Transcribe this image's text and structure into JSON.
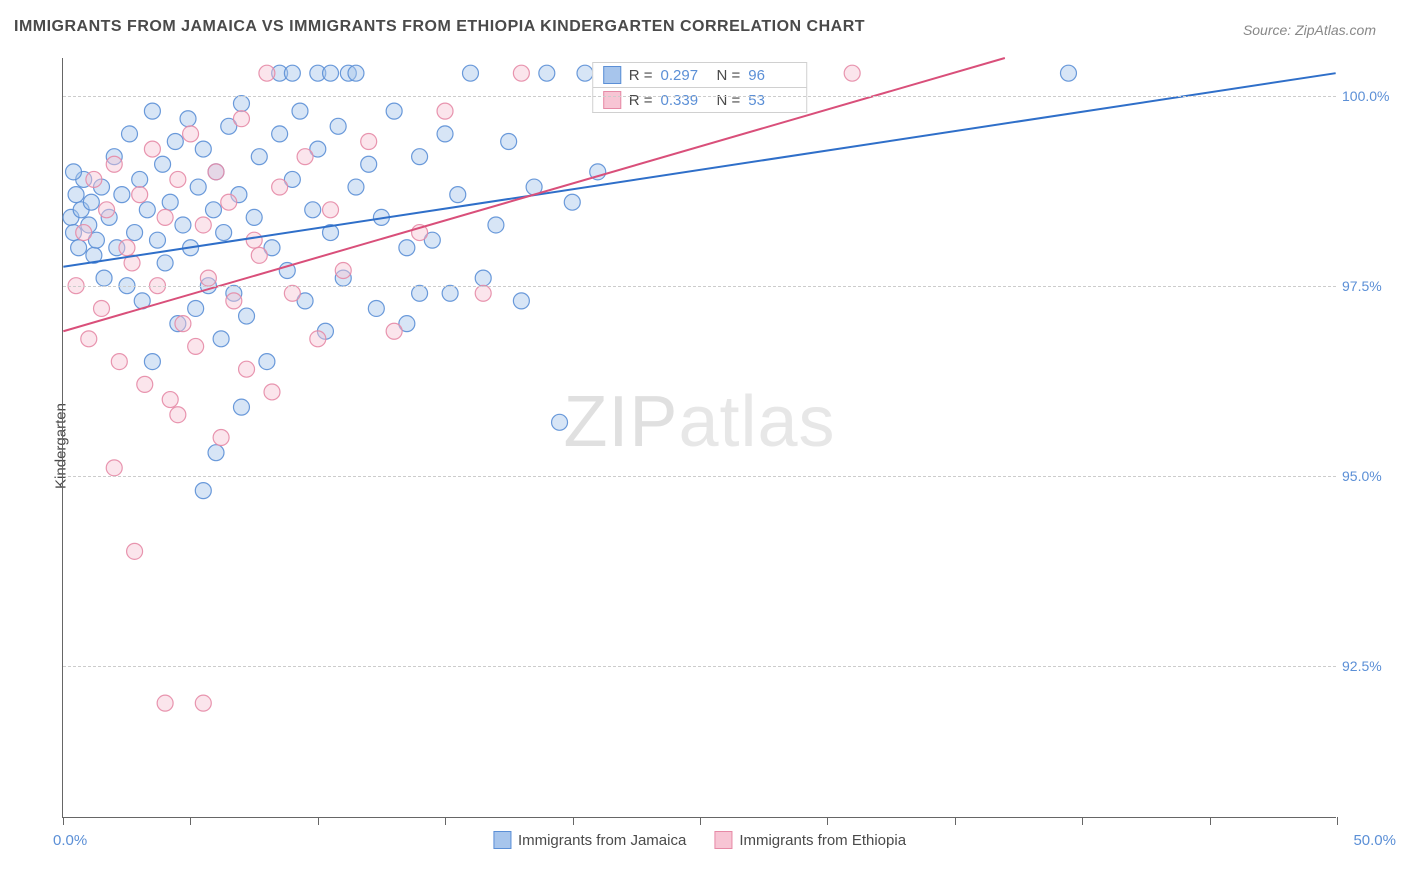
{
  "title": "IMMIGRANTS FROM JAMAICA VS IMMIGRANTS FROM ETHIOPIA KINDERGARTEN CORRELATION CHART",
  "source": "Source: ZipAtlas.com",
  "y_axis_label": "Kindergarten",
  "watermark_bold": "ZIP",
  "watermark_thin": "atlas",
  "chart": {
    "type": "scatter",
    "xlim": [
      0,
      50
    ],
    "ylim": [
      90.5,
      100.5
    ],
    "x_tick_positions": [
      0,
      5,
      10,
      15,
      20,
      25,
      30,
      35,
      40,
      45,
      50
    ],
    "x_tick_labels": {
      "min": "0.0%",
      "max": "50.0%"
    },
    "y_ticks": [
      92.5,
      95.0,
      97.5,
      100.0
    ],
    "y_tick_labels": [
      "92.5%",
      "95.0%",
      "97.5%",
      "100.0%"
    ],
    "grid_color": "#cccccc",
    "background_color": "#ffffff",
    "axis_color": "#666666",
    "tick_label_color": "#5b8fd6",
    "marker_radius": 8,
    "marker_opacity": 0.45,
    "marker_stroke_opacity": 0.9,
    "line_width": 2,
    "series": [
      {
        "name": "Immigrants from Jamaica",
        "color_fill": "#a7c5ec",
        "color_stroke": "#5b8fd6",
        "line_color": "#2f6fc9",
        "R": "0.297",
        "N": "96",
        "regression": {
          "x1": 0,
          "y1": 97.75,
          "x2": 50,
          "y2": 100.3
        },
        "points": [
          [
            0.3,
            98.4
          ],
          [
            0.4,
            98.2
          ],
          [
            0.5,
            98.7
          ],
          [
            0.6,
            98.0
          ],
          [
            0.7,
            98.5
          ],
          [
            0.8,
            98.9
          ],
          [
            1.0,
            98.3
          ],
          [
            0.4,
            99.0
          ],
          [
            1.1,
            98.6
          ],
          [
            1.2,
            97.9
          ],
          [
            1.3,
            98.1
          ],
          [
            1.5,
            98.8
          ],
          [
            1.6,
            97.6
          ],
          [
            1.8,
            98.4
          ],
          [
            2.0,
            99.2
          ],
          [
            2.1,
            98.0
          ],
          [
            2.3,
            98.7
          ],
          [
            2.5,
            97.5
          ],
          [
            2.6,
            99.5
          ],
          [
            2.8,
            98.2
          ],
          [
            3.0,
            98.9
          ],
          [
            3.1,
            97.3
          ],
          [
            3.3,
            98.5
          ],
          [
            3.5,
            99.8
          ],
          [
            3.5,
            96.5
          ],
          [
            3.7,
            98.1
          ],
          [
            3.9,
            99.1
          ],
          [
            4.0,
            97.8
          ],
          [
            4.2,
            98.6
          ],
          [
            4.4,
            99.4
          ],
          [
            4.5,
            97.0
          ],
          [
            4.7,
            98.3
          ],
          [
            4.9,
            99.7
          ],
          [
            5.0,
            98.0
          ],
          [
            5.2,
            97.2
          ],
          [
            5.3,
            98.8
          ],
          [
            5.5,
            99.3
          ],
          [
            5.5,
            94.8
          ],
          [
            5.7,
            97.5
          ],
          [
            5.9,
            98.5
          ],
          [
            6.0,
            99.0
          ],
          [
            6.2,
            96.8
          ],
          [
            6.3,
            98.2
          ],
          [
            6.5,
            99.6
          ],
          [
            6.7,
            97.4
          ],
          [
            6.9,
            98.7
          ],
          [
            7.0,
            99.9
          ],
          [
            7.0,
            95.9
          ],
          [
            7.2,
            97.1
          ],
          [
            7.5,
            98.4
          ],
          [
            7.7,
            99.2
          ],
          [
            8.0,
            96.5
          ],
          [
            8.2,
            98.0
          ],
          [
            8.5,
            99.5
          ],
          [
            8.5,
            100.3
          ],
          [
            8.8,
            97.7
          ],
          [
            9.0,
            98.9
          ],
          [
            9.3,
            99.8
          ],
          [
            9.5,
            97.3
          ],
          [
            9.8,
            98.5
          ],
          [
            10.0,
            99.3
          ],
          [
            10.0,
            100.3
          ],
          [
            10.3,
            96.9
          ],
          [
            10.5,
            98.2
          ],
          [
            10.5,
            100.3
          ],
          [
            10.8,
            99.6
          ],
          [
            11.0,
            97.6
          ],
          [
            11.2,
            100.3
          ],
          [
            11.5,
            98.8
          ],
          [
            12.0,
            99.1
          ],
          [
            12.3,
            97.2
          ],
          [
            12.5,
            98.4
          ],
          [
            13.0,
            99.8
          ],
          [
            13.5,
            97.0
          ],
          [
            14.0,
            99.2
          ],
          [
            14.0,
            97.4
          ],
          [
            14.5,
            98.1
          ],
          [
            15.0,
            99.5
          ],
          [
            15.2,
            97.4
          ],
          [
            15.5,
            98.7
          ],
          [
            16.0,
            100.3
          ],
          [
            16.5,
            97.6
          ],
          [
            17.0,
            98.3
          ],
          [
            17.5,
            99.4
          ],
          [
            18.0,
            97.3
          ],
          [
            18.5,
            98.8
          ],
          [
            19.0,
            100.3
          ],
          [
            19.5,
            95.7
          ],
          [
            20.0,
            98.6
          ],
          [
            20.5,
            100.3
          ],
          [
            21.0,
            99.0
          ],
          [
            39.5,
            100.3
          ],
          [
            11.5,
            100.3
          ],
          [
            9.0,
            100.3
          ],
          [
            13.5,
            98.0
          ],
          [
            6.0,
            95.3
          ]
        ]
      },
      {
        "name": "Immigrants from Ethiopia",
        "color_fill": "#f7c5d4",
        "color_stroke": "#e68aa6",
        "line_color": "#d94f7a",
        "R": "0.339",
        "N": "53",
        "regression": {
          "x1": 0,
          "y1": 96.9,
          "x2": 37,
          "y2": 100.5
        },
        "points": [
          [
            0.5,
            97.5
          ],
          [
            0.8,
            98.2
          ],
          [
            1.0,
            96.8
          ],
          [
            1.2,
            98.9
          ],
          [
            1.5,
            97.2
          ],
          [
            1.7,
            98.5
          ],
          [
            2.0,
            99.1
          ],
          [
            2.0,
            95.1
          ],
          [
            2.2,
            96.5
          ],
          [
            2.5,
            98.0
          ],
          [
            2.7,
            97.8
          ],
          [
            3.0,
            98.7
          ],
          [
            3.2,
            96.2
          ],
          [
            3.5,
            99.3
          ],
          [
            3.7,
            97.5
          ],
          [
            4.0,
            98.4
          ],
          [
            4.0,
            92.0
          ],
          [
            4.2,
            96.0
          ],
          [
            4.5,
            98.9
          ],
          [
            4.7,
            97.0
          ],
          [
            5.0,
            99.5
          ],
          [
            5.2,
            96.7
          ],
          [
            5.5,
            98.3
          ],
          [
            5.7,
            97.6
          ],
          [
            5.5,
            92.0
          ],
          [
            6.0,
            99.0
          ],
          [
            6.2,
            95.5
          ],
          [
            6.5,
            98.6
          ],
          [
            6.7,
            97.3
          ],
          [
            7.0,
            99.7
          ],
          [
            7.2,
            96.4
          ],
          [
            7.5,
            98.1
          ],
          [
            7.7,
            97.9
          ],
          [
            8.0,
            100.3
          ],
          [
            8.2,
            96.1
          ],
          [
            8.5,
            98.8
          ],
          [
            9.0,
            97.4
          ],
          [
            9.5,
            99.2
          ],
          [
            10.0,
            96.8
          ],
          [
            10.5,
            98.5
          ],
          [
            11.0,
            97.7
          ],
          [
            12.0,
            99.4
          ],
          [
            13.0,
            96.9
          ],
          [
            14.0,
            98.2
          ],
          [
            15.0,
            99.8
          ],
          [
            16.5,
            97.4
          ],
          [
            18.0,
            100.3
          ],
          [
            22.0,
            100.3
          ],
          [
            23.0,
            100.0
          ],
          [
            28.5,
            100.3
          ],
          [
            31.0,
            100.3
          ],
          [
            2.8,
            94.0
          ],
          [
            4.5,
            95.8
          ]
        ]
      }
    ],
    "bottom_legend": [
      {
        "label": "Immigrants from Jamaica",
        "fill": "#a7c5ec",
        "stroke": "#5b8fd6"
      },
      {
        "label": "Immigrants from Ethiopia",
        "fill": "#f7c5d4",
        "stroke": "#e68aa6"
      }
    ]
  }
}
